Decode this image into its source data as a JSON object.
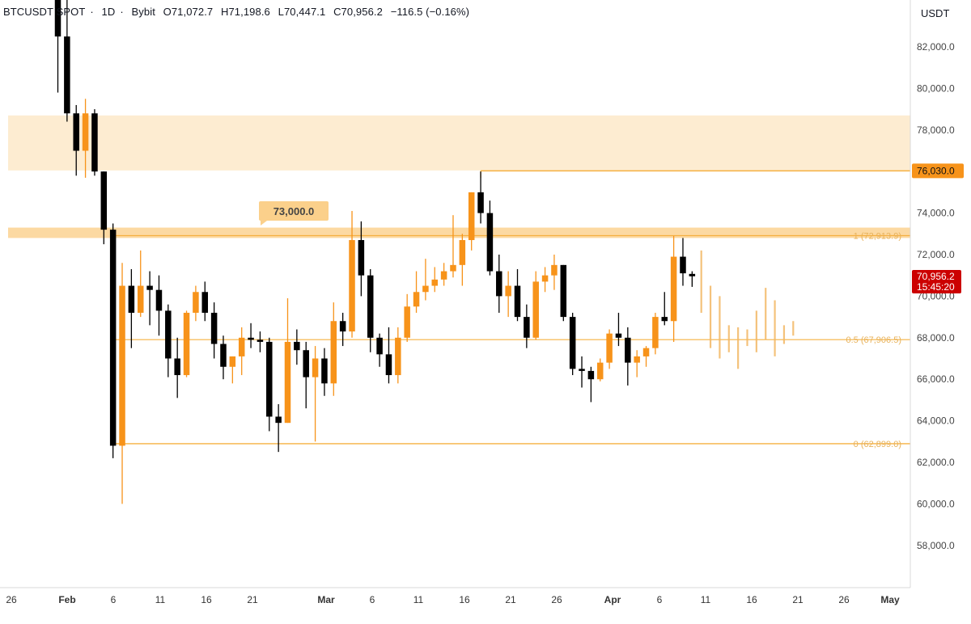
{
  "header": {
    "symbol": "BTCUSDT SPOT",
    "interval": "1D",
    "exchange": "Bybit",
    "open": "O71,072.7",
    "high": "H71,198.6",
    "low": "L70,447.1",
    "close": "C70,956.2",
    "change": "−116.5 (−0.16%)"
  },
  "price_axis": {
    "unit": "USDT",
    "ticks": [
      "82,000.0",
      "80,000.0",
      "78,000.0",
      "76,000.0",
      "74,000.0",
      "72,000.0",
      "70,000.0",
      "68,000.0",
      "66,000.0",
      "64,000.0",
      "62,000.0",
      "60,000.0",
      "58,000.0"
    ],
    "last_price_label": "70,956.2",
    "countdown": "15:45:20",
    "level_label": "76,030.0"
  },
  "annotations": {
    "callout": "73,000.0",
    "fib_1": "1 (72,913.9)",
    "fib_05": "0.5 (67,906.5)",
    "fib_0": "0 (62,899.0)"
  },
  "colors": {
    "up": "#f7931a",
    "down": "#000000",
    "zone": "#fde9c9",
    "line": "#f5b041",
    "last_price": "#cc0000"
  },
  "chart_data": {
    "type": "candlestick",
    "date_axis_labels": [
      "26",
      "Feb",
      "6",
      "11",
      "16",
      "21",
      "Mar",
      "6",
      "11",
      "16",
      "21",
      "26",
      "Apr",
      "6",
      "11",
      "16",
      "21",
      "26",
      "May"
    ],
    "ylim": [
      56000,
      84600
    ],
    "candles": [
      {
        "d": "2024-01-30",
        "o": 84500,
        "h": 84600,
        "l": 79800,
        "c": 82500
      },
      {
        "d": "2024-01-31",
        "o": 82500,
        "h": 84600,
        "l": 78400,
        "c": 78800
      },
      {
        "d": "2024-02-01",
        "o": 78800,
        "h": 79200,
        "l": 75800,
        "c": 77000
      },
      {
        "d": "2024-02-02",
        "o": 77000,
        "h": 79500,
        "l": 75700,
        "c": 78800
      },
      {
        "d": "2024-02-03",
        "o": 78800,
        "h": 79000,
        "l": 75800,
        "c": 76000
      },
      {
        "d": "2024-02-04",
        "o": 76000,
        "h": 76000,
        "l": 72500,
        "c": 73200
      },
      {
        "d": "2024-02-05",
        "o": 73200,
        "h": 73500,
        "l": 62200,
        "c": 62800
      },
      {
        "d": "2024-02-06",
        "o": 62800,
        "h": 71600,
        "l": 60000,
        "c": 70500
      },
      {
        "d": "2024-02-07",
        "o": 70500,
        "h": 71300,
        "l": 67500,
        "c": 69200
      },
      {
        "d": "2024-02-08",
        "o": 69200,
        "h": 72200,
        "l": 69000,
        "c": 70500
      },
      {
        "d": "2024-02-09",
        "o": 70500,
        "h": 71200,
        "l": 68600,
        "c": 70300
      },
      {
        "d": "2024-02-10",
        "o": 70300,
        "h": 71000,
        "l": 68100,
        "c": 69300
      },
      {
        "d": "2024-02-11",
        "o": 69300,
        "h": 69600,
        "l": 66100,
        "c": 67000
      },
      {
        "d": "2024-02-12",
        "o": 67000,
        "h": 68000,
        "l": 65100,
        "c": 66200
      },
      {
        "d": "2024-02-13",
        "o": 66200,
        "h": 69300,
        "l": 66100,
        "c": 69200
      },
      {
        "d": "2024-02-14",
        "o": 69200,
        "h": 70500,
        "l": 68800,
        "c": 70200
      },
      {
        "d": "2024-02-15",
        "o": 70200,
        "h": 70700,
        "l": 68800,
        "c": 69200
      },
      {
        "d": "2024-02-16",
        "o": 69200,
        "h": 69700,
        "l": 67000,
        "c": 67700
      },
      {
        "d": "2024-02-17",
        "o": 67700,
        "h": 68100,
        "l": 66000,
        "c": 66600
      },
      {
        "d": "2024-02-18",
        "o": 66600,
        "h": 67100,
        "l": 65800,
        "c": 67100
      },
      {
        "d": "2024-02-19",
        "o": 67100,
        "h": 68500,
        "l": 66200,
        "c": 68000
      },
      {
        "d": "2024-02-20",
        "o": 68000,
        "h": 68700,
        "l": 67500,
        "c": 67900
      },
      {
        "d": "2024-02-21",
        "o": 67900,
        "h": 68300,
        "l": 67300,
        "c": 67800
      },
      {
        "d": "2024-02-22",
        "o": 67800,
        "h": 68000,
        "l": 63500,
        "c": 64200
      },
      {
        "d": "2024-02-23",
        "o": 64200,
        "h": 64800,
        "l": 62500,
        "c": 63900
      },
      {
        "d": "2024-02-24",
        "o": 63900,
        "h": 69900,
        "l": 63900,
        "c": 67800
      },
      {
        "d": "2024-02-25",
        "o": 67800,
        "h": 68400,
        "l": 66700,
        "c": 67400
      },
      {
        "d": "2024-02-26",
        "o": 67400,
        "h": 67800,
        "l": 64600,
        "c": 66100
      },
      {
        "d": "2024-02-27",
        "o": 66100,
        "h": 67600,
        "l": 63000,
        "c": 67000
      },
      {
        "d": "2024-02-28",
        "o": 67000,
        "h": 67500,
        "l": 65200,
        "c": 65800
      },
      {
        "d": "2024-02-29",
        "o": 65800,
        "h": 69700,
        "l": 65200,
        "c": 68800
      },
      {
        "d": "2024-03-01",
        "o": 68800,
        "h": 69200,
        "l": 67600,
        "c": 68300
      },
      {
        "d": "2024-03-02",
        "o": 68300,
        "h": 74100,
        "l": 68000,
        "c": 72700
      },
      {
        "d": "2024-03-03",
        "o": 72700,
        "h": 73600,
        "l": 70000,
        "c": 71000
      },
      {
        "d": "2024-03-04",
        "o": 71000,
        "h": 71300,
        "l": 67300,
        "c": 68000
      },
      {
        "d": "2024-03-05",
        "o": 68000,
        "h": 68200,
        "l": 66600,
        "c": 67200
      },
      {
        "d": "2024-03-06",
        "o": 67200,
        "h": 68500,
        "l": 65800,
        "c": 66200
      },
      {
        "d": "2024-03-07",
        "o": 66200,
        "h": 68500,
        "l": 65800,
        "c": 68000
      },
      {
        "d": "2024-03-08",
        "o": 68000,
        "h": 70100,
        "l": 67800,
        "c": 69500
      },
      {
        "d": "2024-03-09",
        "o": 69500,
        "h": 71200,
        "l": 69200,
        "c": 70200
      },
      {
        "d": "2024-03-10",
        "o": 70200,
        "h": 71800,
        "l": 69800,
        "c": 70500
      },
      {
        "d": "2024-03-11",
        "o": 70500,
        "h": 71400,
        "l": 70200,
        "c": 70800
      },
      {
        "d": "2024-03-12",
        "o": 70800,
        "h": 71600,
        "l": 70500,
        "c": 71200
      },
      {
        "d": "2024-03-13",
        "o": 71200,
        "h": 73900,
        "l": 70900,
        "c": 71500
      },
      {
        "d": "2024-03-14",
        "o": 71500,
        "h": 73000,
        "l": 70500,
        "c": 72700
      },
      {
        "d": "2024-03-15",
        "o": 72700,
        "h": 75000,
        "l": 72200,
        "c": 75000
      },
      {
        "d": "2024-03-16",
        "o": 75000,
        "h": 76000,
        "l": 73500,
        "c": 74000
      },
      {
        "d": "2024-03-17",
        "o": 74000,
        "h": 74600,
        "l": 71000,
        "c": 71200
      },
      {
        "d": "2024-03-18",
        "o": 71200,
        "h": 72000,
        "l": 69200,
        "c": 70000
      },
      {
        "d": "2024-03-19",
        "o": 70000,
        "h": 71200,
        "l": 69000,
        "c": 70500
      },
      {
        "d": "2024-03-20",
        "o": 70500,
        "h": 71300,
        "l": 68800,
        "c": 69000
      },
      {
        "d": "2024-03-21",
        "o": 69000,
        "h": 69600,
        "l": 67500,
        "c": 68000
      },
      {
        "d": "2024-03-22",
        "o": 68000,
        "h": 71200,
        "l": 67900,
        "c": 70700
      },
      {
        "d": "2024-03-23",
        "o": 70700,
        "h": 71400,
        "l": 70200,
        "c": 71000
      },
      {
        "d": "2024-03-24",
        "o": 71000,
        "h": 72000,
        "l": 70300,
        "c": 71500
      },
      {
        "d": "2024-03-25",
        "o": 71500,
        "h": 71500,
        "l": 68800,
        "c": 69000
      },
      {
        "d": "2024-03-26",
        "o": 69000,
        "h": 69200,
        "l": 66200,
        "c": 66500
      },
      {
        "d": "2024-03-27",
        "o": 66500,
        "h": 67100,
        "l": 65600,
        "c": 66400
      },
      {
        "d": "2024-03-28",
        "o": 66400,
        "h": 66600,
        "l": 64900,
        "c": 66000
      },
      {
        "d": "2024-03-29",
        "o": 66000,
        "h": 67000,
        "l": 65900,
        "c": 66800
      },
      {
        "d": "2024-03-30",
        "o": 66800,
        "h": 68400,
        "l": 66500,
        "c": 68200
      },
      {
        "d": "2024-03-31",
        "o": 68200,
        "h": 69200,
        "l": 67600,
        "c": 68000
      },
      {
        "d": "2024-04-01",
        "o": 68000,
        "h": 68500,
        "l": 65700,
        "c": 66800
      },
      {
        "d": "2024-04-02",
        "o": 66800,
        "h": 67400,
        "l": 66100,
        "c": 67100
      },
      {
        "d": "2024-04-03",
        "o": 67100,
        "h": 67600,
        "l": 66600,
        "c": 67500
      },
      {
        "d": "2024-04-04",
        "o": 67500,
        "h": 69200,
        "l": 67200,
        "c": 69000
      },
      {
        "d": "2024-04-05",
        "o": 69000,
        "h": 70200,
        "l": 68600,
        "c": 68800
      },
      {
        "d": "2024-04-06",
        "o": 68800,
        "h": 72900,
        "l": 67800,
        "c": 71900
      },
      {
        "d": "2024-04-07",
        "o": 71900,
        "h": 72800,
        "l": 70500,
        "c": 71100
      },
      {
        "d": "2024-04-08",
        "o": 71072.7,
        "h": 71198.6,
        "l": 70447.1,
        "c": 70956.2
      }
    ],
    "projection": [
      {
        "d": "2024-04-09",
        "h": 72200,
        "l": 69200
      },
      {
        "d": "2024-04-10",
        "h": 70500,
        "l": 67500
      },
      {
        "d": "2024-04-11",
        "h": 70000,
        "l": 67000
      },
      {
        "d": "2024-04-12",
        "h": 68600,
        "l": 67300
      },
      {
        "d": "2024-04-13",
        "h": 68500,
        "l": 66500
      },
      {
        "d": "2024-04-14",
        "h": 68400,
        "l": 67600
      },
      {
        "d": "2024-04-15",
        "h": 69300,
        "l": 67300
      },
      {
        "d": "2024-04-16",
        "h": 70400,
        "l": 67900
      },
      {
        "d": "2024-04-17",
        "h": 69800,
        "l": 67100
      },
      {
        "d": "2024-04-18",
        "h": 68600,
        "l": 67700
      },
      {
        "d": "2024-04-19",
        "h": 68800,
        "l": 68100
      }
    ],
    "levels": {
      "supply_zone": [
        76050,
        78700
      ],
      "resistance_zone": [
        72800,
        73300
      ],
      "high_line": 76030,
      "fib_1": 72913.9,
      "fib_05": 67906.5,
      "fib_0": 62899.0
    }
  }
}
